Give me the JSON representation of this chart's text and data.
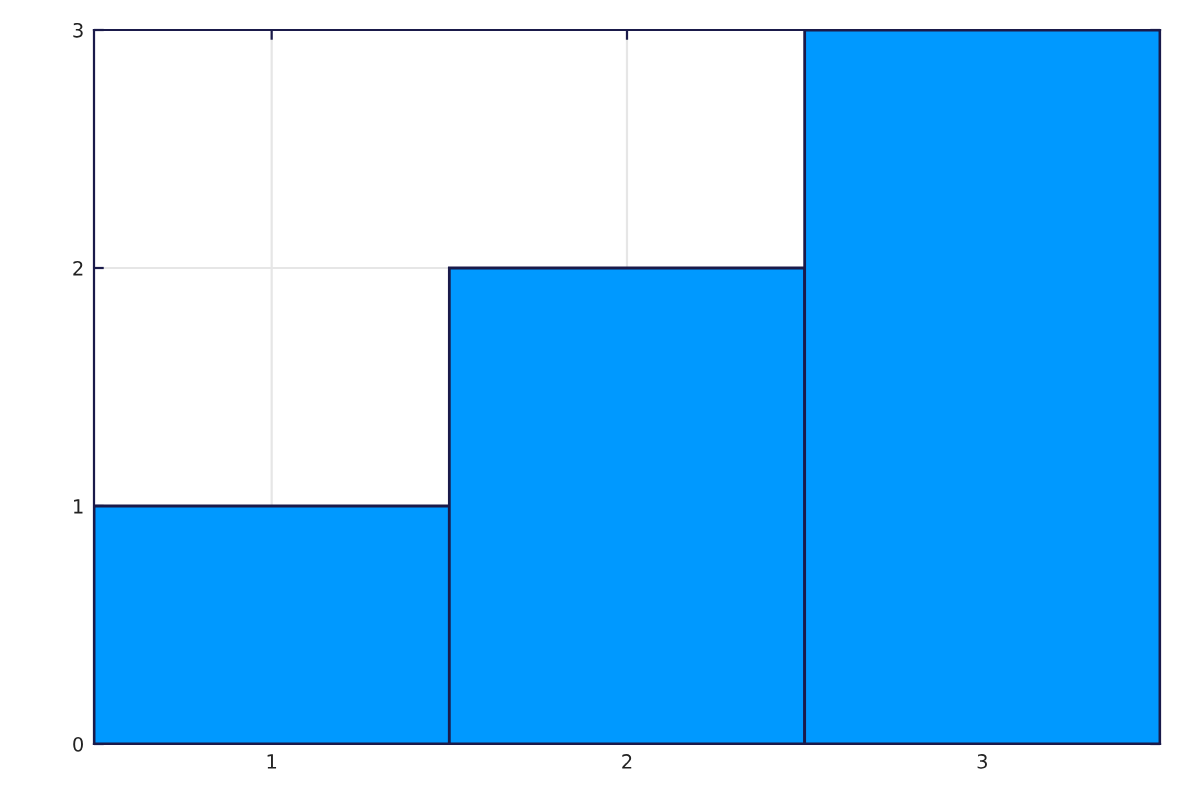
{
  "chart_data": {
    "type": "bar",
    "categories": [
      "1",
      "2",
      "3"
    ],
    "values": [
      1,
      2,
      3
    ],
    "color": "#0099ff",
    "ylim": [
      0,
      3
    ],
    "yticks": [
      0,
      1,
      2,
      3
    ],
    "grid": true
  }
}
